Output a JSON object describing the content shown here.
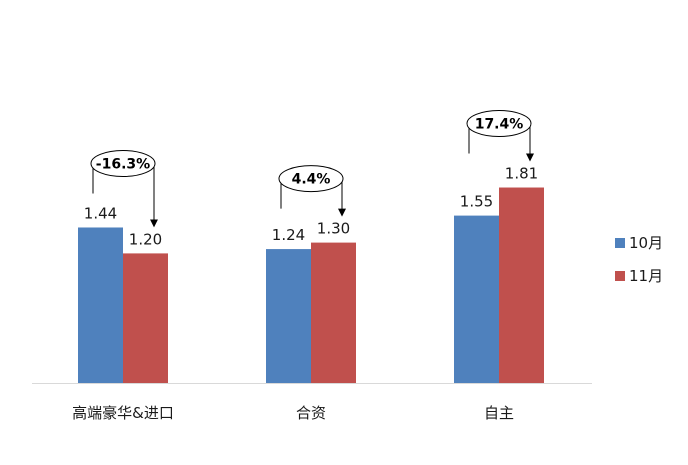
{
  "chart_data": {
    "type": "bar",
    "categories": [
      "高端豪华&进口",
      "合资",
      "自主"
    ],
    "series": [
      {
        "name": "10月",
        "values": [
          1.44,
          1.24,
          1.55
        ],
        "color": "#4f81bd"
      },
      {
        "name": "11月",
        "values": [
          1.2,
          1.3,
          1.81
        ],
        "color": "#c0504d"
      }
    ],
    "value_labels": [
      [
        "1.44",
        "1.24",
        "1.55"
      ],
      [
        "1.20",
        "1.30",
        "1.81"
      ]
    ],
    "changes": [
      "-16.3%",
      "4.4%",
      "17.4%"
    ],
    "ylim": [
      0,
      2.0
    ],
    "grid": false,
    "legend_position": "right",
    "title": "",
    "xlabel": "",
    "ylabel": ""
  }
}
